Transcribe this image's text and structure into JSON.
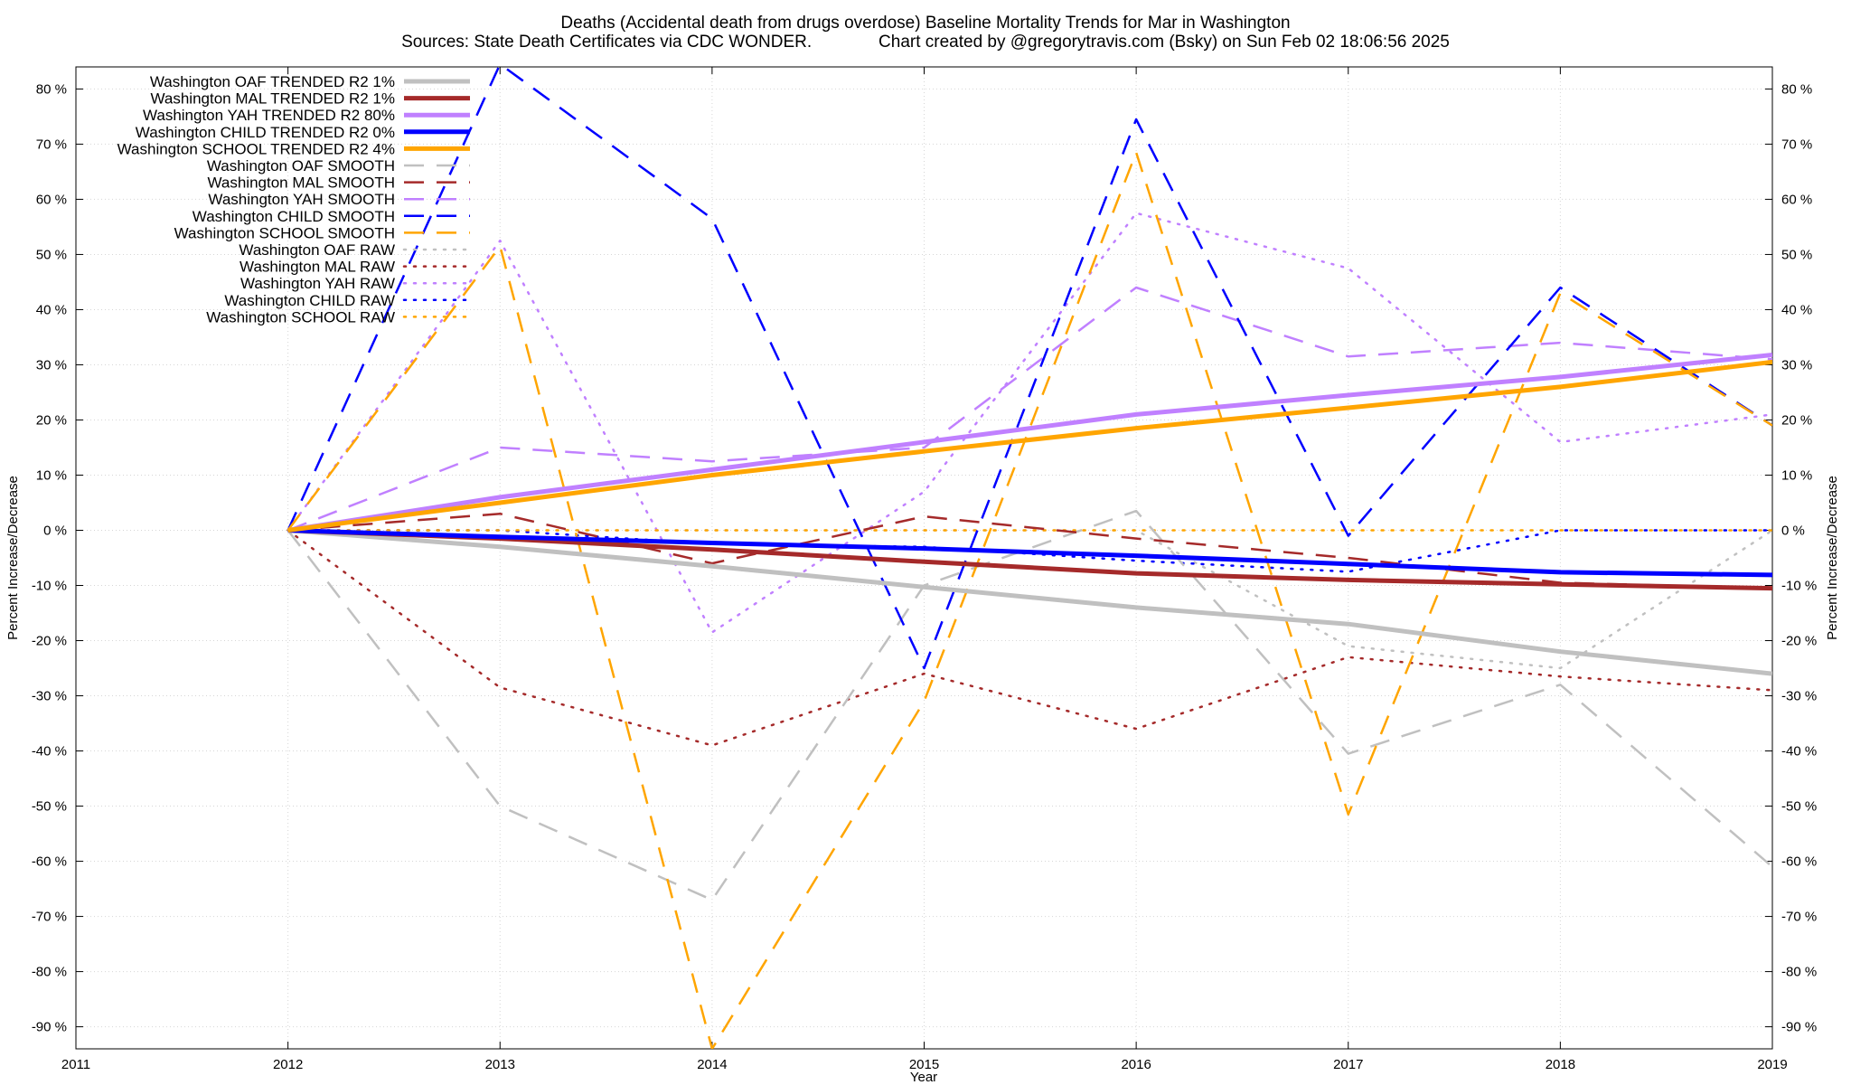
{
  "chart_data": {
    "type": "line",
    "title": "Deaths (Accidental death from drugs overdose)  Baseline Mortality Trends for Mar in Washington",
    "subtitle": "Sources: State Death Certificates via CDC WONDER.              Chart created by @gregorytravis.com (Bsky) on Sun Feb 02 18:06:56 2025",
    "xlabel": "Year",
    "ylabel": "Percent Increase/Decrease",
    "xlim": [
      2011,
      2019
    ],
    "ylim": [
      -94,
      84
    ],
    "x_ticks": [
      "2011",
      "2012",
      "2013",
      "2014",
      "2015",
      "2016",
      "2017",
      "2018",
      "2019"
    ],
    "y_ticks": [
      "80 %",
      "70 %",
      "60 %",
      "50 %",
      "40 %",
      "30 %",
      "20 %",
      "10 %",
      "0 %",
      "-10 %",
      "-20 %",
      "-30 %",
      "-40 %",
      "-50 %",
      "-60 %",
      "-70 %",
      "-80 %",
      "-90 %"
    ],
    "grid": true,
    "legend_position": "top-left",
    "x": [
      2012,
      2013,
      2014,
      2015,
      2016,
      2017,
      2018,
      2019
    ],
    "series": [
      {
        "name": "Washington OAF TRENDED R2  1%",
        "style": "solid",
        "color": "#c0c0c0",
        "width": 5,
        "values": [
          0,
          -3,
          -6.5,
          -10.3,
          -14,
          -17,
          -22,
          -26
        ]
      },
      {
        "name": "Washington MAL TRENDED R2  1%",
        "style": "solid",
        "color": "#a52a2a",
        "width": 5,
        "values": [
          0,
          -1.5,
          -3.5,
          -5.7,
          -7.8,
          -9,
          -9.8,
          -10.5
        ]
      },
      {
        "name": "Washington YAH TRENDED R2  80%",
        "style": "solid",
        "color": "#c080ff",
        "width": 5,
        "values": [
          0,
          6,
          11,
          16,
          21,
          24.5,
          27.8,
          31.8
        ]
      },
      {
        "name": "Washington CHILD TRENDED R2  0%",
        "style": "solid",
        "color": "#0000ff",
        "width": 5,
        "values": [
          0,
          -1.2,
          -2.3,
          -3.3,
          -4.6,
          -6.1,
          -7.6,
          -8.1
        ]
      },
      {
        "name": "Washington SCHOOL TRENDED R2  4%",
        "style": "solid",
        "color": "#ffa500",
        "width": 5,
        "values": [
          0,
          5,
          10,
          14.3,
          18.5,
          22.2,
          26,
          30.5
        ]
      },
      {
        "name": "Washington OAF SMOOTH",
        "style": "dash",
        "color": "#c0c0c0",
        "width": 2.5,
        "values": [
          0,
          -50,
          -67,
          -10,
          3.5,
          -40.5,
          -28,
          -61
        ]
      },
      {
        "name": "Washington MAL SMOOTH",
        "style": "dash",
        "color": "#a52a2a",
        "width": 2.5,
        "values": [
          0,
          3,
          -6,
          2.5,
          -1.5,
          -5,
          -9.5,
          -10.5
        ]
      },
      {
        "name": "Washington YAH SMOOTH",
        "style": "dash",
        "color": "#c080ff",
        "width": 2.5,
        "values": [
          0,
          15,
          12.5,
          15,
          44,
          31.5,
          34,
          31
        ]
      },
      {
        "name": "Washington CHILD SMOOTH",
        "style": "dash",
        "color": "#0000ff",
        "width": 2.5,
        "values": [
          0,
          84.5,
          56.5,
          -25,
          74.5,
          -1,
          44,
          19
        ]
      },
      {
        "name": "Washington SCHOOL SMOOTH",
        "style": "dash",
        "color": "#ffa500",
        "width": 2.5,
        "values": [
          0,
          51.5,
          -94,
          -31,
          68.5,
          -51.5,
          43,
          19
        ]
      },
      {
        "name": "Washington OAF RAW",
        "style": "dot",
        "color": "#c0c0c0",
        "width": 2.5,
        "values": [
          0,
          0,
          0,
          0,
          0,
          -21,
          -25,
          0
        ]
      },
      {
        "name": "Washington MAL RAW",
        "style": "dot",
        "color": "#a52a2a",
        "width": 2.5,
        "values": [
          0,
          -28.5,
          -39,
          -26,
          -36,
          -23,
          -26.5,
          -29
        ]
      },
      {
        "name": "Washington YAH RAW",
        "style": "dot",
        "color": "#c080ff",
        "width": 2.5,
        "values": [
          0,
          52.5,
          -18.5,
          7,
          57.5,
          47.5,
          16,
          21
        ]
      },
      {
        "name": "Washington CHILD RAW",
        "style": "dot",
        "color": "#0000ff",
        "width": 2.5,
        "values": [
          0,
          0,
          -2.5,
          -3,
          -5.5,
          -7.5,
          0,
          0
        ]
      },
      {
        "name": "Washington SCHOOL RAW",
        "style": "dot",
        "color": "#ffa500",
        "width": 2.5,
        "values": [
          0,
          0,
          0,
          0,
          0,
          0,
          0,
          0
        ]
      }
    ]
  }
}
